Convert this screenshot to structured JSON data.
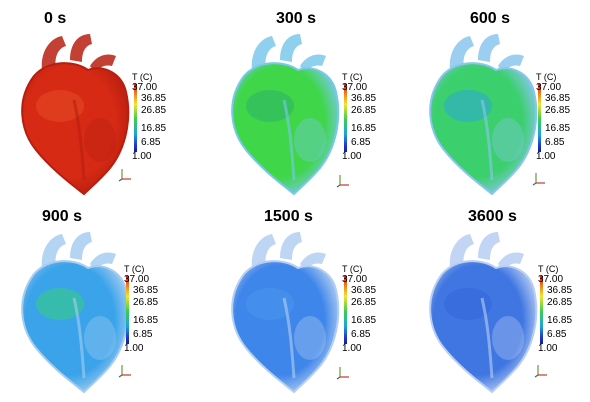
{
  "legend": {
    "title": "T (C)",
    "values": [
      "37.00",
      "36.85",
      "26.85",
      "16.85",
      "6.85",
      "1.00"
    ]
  },
  "panels": [
    {
      "time": "0 s",
      "fill": "#d62a14",
      "edge": "#b81e10",
      "highlight": "#e84a24"
    },
    {
      "time": "300 s",
      "fill": "#3fd64a",
      "edge": "#7ac8ea",
      "highlight": "#2eb36a"
    },
    {
      "time": "600 s",
      "fill": "#3bcf6e",
      "edge": "#8ac6ee",
      "highlight": "#2fa8d8"
    },
    {
      "time": "900 s",
      "fill": "#3aa3ea",
      "edge": "#a6cdf0",
      "highlight": "#34d07a"
    },
    {
      "time": "1500 s",
      "fill": "#3f86ea",
      "edge": "#b3cff2",
      "highlight": "#4a97ec"
    },
    {
      "time": "3600 s",
      "fill": "#3f76e2",
      "edge": "#b8cef2",
      "highlight": "#3564d8"
    }
  ]
}
